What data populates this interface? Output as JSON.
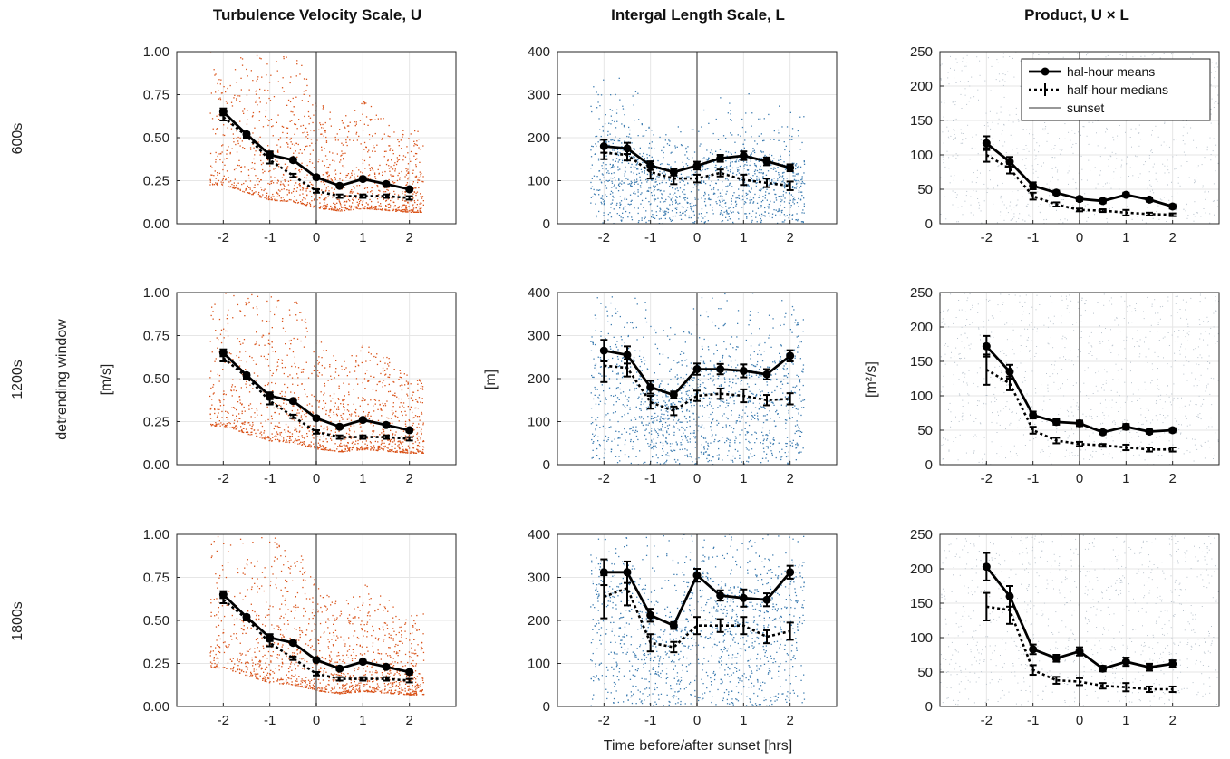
{
  "column_titles": [
    "Turbulence Velocity Scale, U",
    "Intergal Length Scale, L",
    "Product, U × L"
  ],
  "row_labels": [
    "600s",
    "1200s",
    "1800s"
  ],
  "row_group_label": "detrending window",
  "y_labels": [
    "[m/s]",
    "[m]",
    "[m²/s]"
  ],
  "x_label": "Time before/after sunset [hrs]",
  "legend": {
    "means": "hal-hour means",
    "medians": "half-hour medians",
    "sunset": "sunset"
  },
  "colors": {
    "U_scatter": "#d95319",
    "L_scatter": "#3d7cb0",
    "UL_scatter": "#b8c2cc",
    "line": "#000000",
    "grid": "#e6e6e6"
  },
  "chart_data": [
    {
      "type": "line",
      "row": "600s",
      "column": "U",
      "ylim": [
        0,
        1
      ],
      "yticks": [
        "0.00",
        "0.25",
        "0.50",
        "0.75",
        "1.00"
      ],
      "xlim": [
        -3,
        3
      ],
      "xticks": [
        "-2",
        "-1",
        "0",
        "1",
        "2"
      ],
      "x": [
        -2,
        -1.5,
        -1,
        -0.5,
        0,
        0.5,
        1,
        1.5,
        2
      ],
      "series": [
        {
          "name": "hal-hour means",
          "values": [
            0.65,
            0.52,
            0.4,
            0.37,
            0.27,
            0.22,
            0.26,
            0.23,
            0.2
          ],
          "err": [
            0.02,
            0.01,
            0.02,
            0.01,
            0.01,
            0.01,
            0.01,
            0.01,
            0.01
          ]
        },
        {
          "name": "half-hour medians",
          "values": [
            0.62,
            0.51,
            0.37,
            0.28,
            0.19,
            0.16,
            0.16,
            0.16,
            0.15
          ],
          "err": [
            0.02,
            0.01,
            0.02,
            0.01,
            0.01,
            0.01,
            0.01,
            0.01,
            0.01
          ]
        }
      ]
    },
    {
      "type": "line",
      "row": "600s",
      "column": "L",
      "ylim": [
        0,
        400
      ],
      "yticks": [
        "0",
        "100",
        "200",
        "300",
        "400"
      ],
      "xlim": [
        -3,
        3
      ],
      "xticks": [
        "-2",
        "-1",
        "0",
        "1",
        "2"
      ],
      "x": [
        -2,
        -1.5,
        -1,
        -0.5,
        0,
        0.5,
        1,
        1.5,
        2
      ],
      "series": [
        {
          "name": "hal-hour means",
          "values": [
            180,
            175,
            135,
            120,
            135,
            152,
            158,
            145,
            130
          ],
          "err": [
            15,
            13,
            10,
            8,
            9,
            8,
            10,
            9,
            8
          ]
        },
        {
          "name": "half-hour medians",
          "values": [
            165,
            160,
            120,
            105,
            105,
            118,
            102,
            95,
            88
          ],
          "err": [
            15,
            13,
            15,
            13,
            9,
            8,
            12,
            10,
            10
          ]
        }
      ]
    },
    {
      "type": "line",
      "row": "600s",
      "column": "UL",
      "ylim": [
        0,
        250
      ],
      "yticks": [
        "0",
        "50",
        "100",
        "150",
        "200",
        "250"
      ],
      "xlim": [
        -3,
        3
      ],
      "xticks": [
        "-2",
        "-1",
        "0",
        "1",
        "2"
      ],
      "x": [
        -2,
        -1.5,
        -1,
        -0.5,
        0,
        0.5,
        1,
        1.5,
        2
      ],
      "series": [
        {
          "name": "hal-hour means",
          "values": [
            117,
            90,
            55,
            45,
            36,
            33,
            42,
            35,
            25
          ],
          "err": [
            10,
            7,
            5,
            3,
            3,
            3,
            3,
            3,
            3
          ]
        },
        {
          "name": "half-hour medians",
          "values": [
            100,
            80,
            40,
            28,
            20,
            19,
            16,
            14,
            13
          ],
          "err": [
            10,
            7,
            5,
            3,
            2,
            2,
            4,
            2,
            2
          ]
        }
      ]
    },
    {
      "type": "line",
      "row": "1200s",
      "column": "U",
      "ylim": [
        0,
        1
      ],
      "yticks": [
        "0.00",
        "0.25",
        "0.50",
        "0.75",
        "1.00"
      ],
      "xlim": [
        -3,
        3
      ],
      "xticks": [
        "-2",
        "-1",
        "0",
        "1",
        "2"
      ],
      "x": [
        -2,
        -1.5,
        -1,
        -0.5,
        0,
        0.5,
        1,
        1.5,
        2
      ],
      "series": [
        {
          "name": "hal-hour means",
          "values": [
            0.65,
            0.52,
            0.4,
            0.37,
            0.27,
            0.22,
            0.26,
            0.23,
            0.2
          ],
          "err": [
            0.02,
            0.01,
            0.02,
            0.01,
            0.01,
            0.01,
            0.01,
            0.01,
            0.01
          ]
        },
        {
          "name": "half-hour medians",
          "values": [
            0.62,
            0.51,
            0.37,
            0.28,
            0.19,
            0.16,
            0.16,
            0.16,
            0.15
          ],
          "err": [
            0.02,
            0.01,
            0.02,
            0.01,
            0.01,
            0.01,
            0.01,
            0.01,
            0.01
          ]
        }
      ]
    },
    {
      "type": "line",
      "row": "1200s",
      "column": "L",
      "ylim": [
        0,
        400
      ],
      "yticks": [
        "0",
        "100",
        "200",
        "300",
        "400"
      ],
      "xlim": [
        -3,
        3
      ],
      "xticks": [
        "-2",
        "-1",
        "0",
        "1",
        "2"
      ],
      "x": [
        -2,
        -1.5,
        -1,
        -0.5,
        0,
        0.5,
        1,
        1.5,
        2
      ],
      "series": [
        {
          "name": "hal-hour means",
          "values": [
            265,
            255,
            180,
            162,
            222,
            222,
            218,
            210,
            253
          ],
          "err": [
            25,
            20,
            15,
            8,
            13,
            12,
            15,
            12,
            13
          ]
        },
        {
          "name": "half-hour medians",
          "values": [
            230,
            225,
            145,
            125,
            160,
            165,
            160,
            150,
            153
          ],
          "err": [
            38,
            20,
            15,
            10,
            12,
            12,
            15,
            12,
            13
          ]
        }
      ]
    },
    {
      "type": "line",
      "row": "1200s",
      "column": "UL",
      "ylim": [
        0,
        250
      ],
      "yticks": [
        "0",
        "50",
        "100",
        "150",
        "200",
        "250"
      ],
      "xlim": [
        -3,
        3
      ],
      "xticks": [
        "-2",
        "-1",
        "0",
        "1",
        "2"
      ],
      "x": [
        -2,
        -1.5,
        -1,
        -0.5,
        0,
        0.5,
        1,
        1.5,
        2
      ],
      "series": [
        {
          "name": "hal-hour means",
          "values": [
            172,
            135,
            72,
            62,
            60,
            47,
            55,
            48,
            50
          ],
          "err": [
            15,
            10,
            5,
            4,
            4,
            3,
            4,
            3,
            3
          ]
        },
        {
          "name": "half-hour medians",
          "values": [
            138,
            118,
            50,
            35,
            30,
            28,
            25,
            22,
            22
          ],
          "err": [
            22,
            10,
            5,
            4,
            3,
            2,
            4,
            3,
            3
          ]
        }
      ]
    },
    {
      "type": "line",
      "row": "1800s",
      "column": "U",
      "ylim": [
        0,
        1
      ],
      "yticks": [
        "0.00",
        "0.25",
        "0.50",
        "0.75",
        "1.00"
      ],
      "xlim": [
        -3,
        3
      ],
      "xticks": [
        "-2",
        "-1",
        "0",
        "1",
        "2"
      ],
      "x": [
        -2,
        -1.5,
        -1,
        -0.5,
        0,
        0.5,
        1,
        1.5,
        2
      ],
      "series": [
        {
          "name": "hal-hour means",
          "values": [
            0.65,
            0.52,
            0.4,
            0.37,
            0.27,
            0.22,
            0.26,
            0.23,
            0.2
          ],
          "err": [
            0.02,
            0.01,
            0.02,
            0.01,
            0.01,
            0.01,
            0.01,
            0.01,
            0.01
          ]
        },
        {
          "name": "half-hour medians",
          "values": [
            0.62,
            0.51,
            0.37,
            0.28,
            0.19,
            0.16,
            0.16,
            0.16,
            0.15
          ],
          "err": [
            0.02,
            0.01,
            0.02,
            0.01,
            0.01,
            0.01,
            0.01,
            0.01,
            0.01
          ]
        }
      ]
    },
    {
      "type": "line",
      "row": "1800s",
      "column": "L",
      "ylim": [
        0,
        400
      ],
      "yticks": [
        "0",
        "100",
        "200",
        "300",
        "400"
      ],
      "xlim": [
        -3,
        3
      ],
      "xticks": [
        "-2",
        "-1",
        "0",
        "1",
        "2"
      ],
      "x": [
        -2,
        -1.5,
        -1,
        -0.5,
        0,
        0.5,
        1,
        1.5,
        2
      ],
      "series": [
        {
          "name": "hal-hour means",
          "values": [
            312,
            312,
            212,
            188,
            305,
            258,
            252,
            248,
            312
          ],
          "err": [
            30,
            25,
            15,
            8,
            15,
            12,
            20,
            15,
            15
          ]
        },
        {
          "name": "half-hour medians",
          "values": [
            255,
            275,
            148,
            138,
            188,
            188,
            188,
            162,
            175
          ],
          "err": [
            50,
            40,
            20,
            12,
            20,
            15,
            20,
            15,
            20
          ]
        }
      ]
    },
    {
      "type": "line",
      "row": "1800s",
      "column": "UL",
      "ylim": [
        0,
        250
      ],
      "yticks": [
        "0",
        "50",
        "100",
        "150",
        "200",
        "250"
      ],
      "xlim": [
        -3,
        3
      ],
      "xticks": [
        "-2",
        "-1",
        "0",
        "1",
        "2"
      ],
      "x": [
        -2,
        -1.5,
        -1,
        -0.5,
        0,
        0.5,
        1,
        1.5,
        2
      ],
      "series": [
        {
          "name": "hal-hour means",
          "values": [
            203,
            160,
            83,
            70,
            80,
            55,
            65,
            57,
            62
          ],
          "err": [
            20,
            15,
            7,
            5,
            6,
            4,
            6,
            5,
            5
          ]
        },
        {
          "name": "half-hour medians",
          "values": [
            145,
            140,
            53,
            38,
            36,
            30,
            28,
            25,
            25
          ],
          "err": [
            20,
            20,
            7,
            5,
            5,
            4,
            6,
            4,
            4
          ]
        }
      ]
    }
  ]
}
